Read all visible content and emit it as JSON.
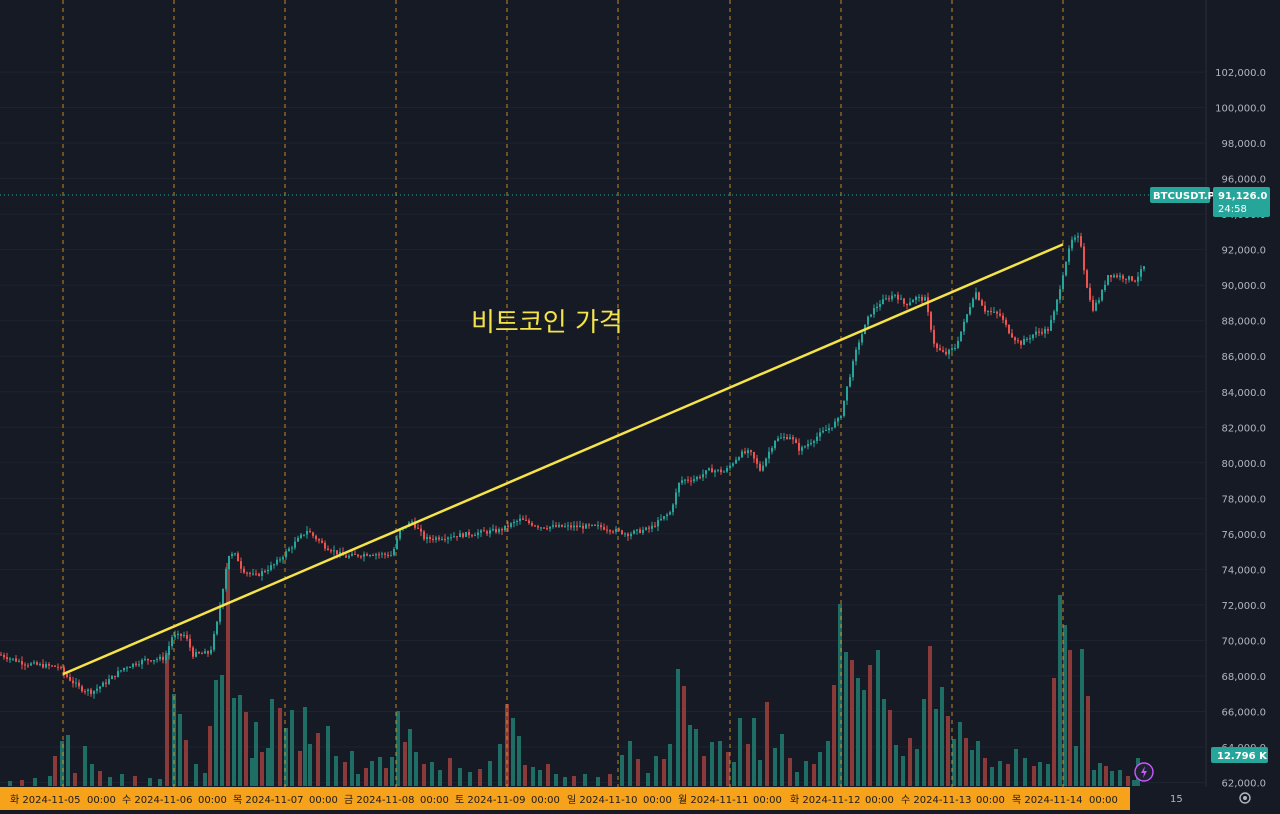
{
  "chart_data": {
    "type": "candlestick",
    "symbol": "BTCUSDT.P",
    "last_price": "91,126.0",
    "countdown": "24:58",
    "volume_label": "12.796 K",
    "annotation": "비트코인 가격",
    "ylim": [
      60000,
      102000
    ],
    "y_ticks": [
      "62,000.0",
      "64,000.0",
      "66,000.0",
      "68,000.0",
      "70,000.0",
      "72,000.0",
      "74,000.0",
      "76,000.0",
      "78,000.0",
      "80,000.0",
      "82,000.0",
      "84,000.0",
      "86,000.0",
      "88,000.0",
      "90,000.0",
      "92,000.0",
      "94,000.0",
      "96,000.0",
      "98,000.0",
      "100,000.0",
      "102,000.0"
    ],
    "x_labels": [
      "화 2024-11-05",
      "00:00",
      "수 2024-11-06",
      "00:00",
      "목 2024-11-07",
      "00:00",
      "금 2024-11-08",
      "00:00",
      "토 2024-11-09",
      "00:00",
      "일 2024-11-10",
      "00:00",
      "월 2024-11-11",
      "00:00",
      "화 2024-11-12",
      "00:00",
      "수 2024-11-13",
      "00:00",
      "목 2024-11-14",
      "00:00"
    ],
    "right_axis_footer": "15",
    "trendline": {
      "start": [
        "2024-11-05",
        68100
      ],
      "end": [
        "2024-11-14",
        92300
      ]
    },
    "price_path": [
      [
        0,
        69200
      ],
      [
        25,
        68700
      ],
      [
        40,
        68600
      ],
      [
        60,
        68500
      ],
      [
        62,
        68200
      ],
      [
        80,
        67300
      ],
      [
        92,
        67100
      ],
      [
        105,
        67600
      ],
      [
        125,
        68500
      ],
      [
        145,
        68900
      ],
      [
        165,
        69000
      ],
      [
        172,
        70200
      ],
      [
        185,
        70300
      ],
      [
        193,
        69200
      ],
      [
        210,
        69300
      ],
      [
        218,
        71200
      ],
      [
        228,
        74800
      ],
      [
        236,
        74800
      ],
      [
        242,
        74000
      ],
      [
        255,
        73600
      ],
      [
        275,
        74300
      ],
      [
        295,
        75500
      ],
      [
        307,
        76200
      ],
      [
        325,
        75300
      ],
      [
        345,
        74700
      ],
      [
        370,
        74900
      ],
      [
        392,
        74800
      ],
      [
        400,
        76200
      ],
      [
        412,
        76700
      ],
      [
        425,
        75700
      ],
      [
        440,
        75800
      ],
      [
        470,
        76000
      ],
      [
        500,
        76200
      ],
      [
        520,
        76800
      ],
      [
        540,
        76400
      ],
      [
        570,
        76400
      ],
      [
        600,
        76400
      ],
      [
        628,
        76000
      ],
      [
        650,
        76300
      ],
      [
        670,
        77200
      ],
      [
        680,
        79000
      ],
      [
        695,
        79100
      ],
      [
        710,
        79600
      ],
      [
        725,
        79500
      ],
      [
        740,
        80500
      ],
      [
        750,
        80600
      ],
      [
        760,
        79600
      ],
      [
        775,
        81300
      ],
      [
        790,
        81500
      ],
      [
        800,
        80700
      ],
      [
        815,
        81400
      ],
      [
        830,
        82000
      ],
      [
        840,
        82500
      ],
      [
        848,
        84500
      ],
      [
        858,
        86700
      ],
      [
        870,
        88400
      ],
      [
        880,
        89000
      ],
      [
        895,
        89500
      ],
      [
        905,
        88900
      ],
      [
        915,
        89300
      ],
      [
        925,
        89200
      ],
      [
        935,
        86500
      ],
      [
        945,
        86100
      ],
      [
        955,
        86500
      ],
      [
        965,
        88000
      ],
      [
        975,
        89700
      ],
      [
        985,
        88600
      ],
      [
        1000,
        88300
      ],
      [
        1010,
        87300
      ],
      [
        1020,
        86700
      ],
      [
        1035,
        87300
      ],
      [
        1048,
        87500
      ],
      [
        1055,
        88600
      ],
      [
        1065,
        91200
      ],
      [
        1072,
        92500
      ],
      [
        1080,
        92700
      ],
      [
        1085,
        90500
      ],
      [
        1092,
        88600
      ],
      [
        1100,
        89300
      ],
      [
        1108,
        90600
      ],
      [
        1120,
        90500
      ],
      [
        1135,
        90300
      ],
      [
        1145,
        91100
      ]
    ],
    "volume_bars": [
      [
        10,
        5
      ],
      [
        22,
        6
      ],
      [
        35,
        8
      ],
      [
        50,
        10
      ],
      [
        55,
        30
      ],
      [
        62,
        45
      ],
      [
        68,
        51
      ],
      [
        75,
        13
      ],
      [
        85,
        40
      ],
      [
        92,
        22
      ],
      [
        100,
        15
      ],
      [
        110,
        9
      ],
      [
        122,
        12
      ],
      [
        135,
        10
      ],
      [
        150,
        8
      ],
      [
        160,
        7
      ],
      [
        167,
        133
      ],
      [
        174,
        92
      ],
      [
        180,
        72
      ],
      [
        186,
        46
      ],
      [
        196,
        22
      ],
      [
        205,
        13
      ],
      [
        210,
        60
      ],
      [
        216,
        106
      ],
      [
        222,
        111
      ],
      [
        228,
        223
      ],
      [
        234,
        88
      ],
      [
        240,
        91
      ],
      [
        246,
        74
      ],
      [
        252,
        28
      ],
      [
        256,
        64
      ],
      [
        262,
        34
      ],
      [
        268,
        38
      ],
      [
        272,
        87
      ],
      [
        280,
        78
      ],
      [
        286,
        58
      ],
      [
        292,
        76
      ],
      [
        300,
        35
      ],
      [
        305,
        79
      ],
      [
        310,
        42
      ],
      [
        318,
        53
      ],
      [
        328,
        60
      ],
      [
        336,
        30
      ],
      [
        345,
        24
      ],
      [
        352,
        35
      ],
      [
        358,
        12
      ],
      [
        366,
        18
      ],
      [
        372,
        25
      ],
      [
        380,
        29
      ],
      [
        386,
        18
      ],
      [
        392,
        29
      ],
      [
        398,
        75
      ],
      [
        405,
        44
      ],
      [
        410,
        57
      ],
      [
        416,
        34
      ],
      [
        424,
        22
      ],
      [
        432,
        24
      ],
      [
        440,
        16
      ],
      [
        450,
        28
      ],
      [
        460,
        18
      ],
      [
        470,
        14
      ],
      [
        480,
        17
      ],
      [
        490,
        25
      ],
      [
        500,
        42
      ],
      [
        507,
        82
      ],
      [
        513,
        68
      ],
      [
        519,
        50
      ],
      [
        525,
        21
      ],
      [
        533,
        19
      ],
      [
        540,
        16
      ],
      [
        548,
        22
      ],
      [
        556,
        12
      ],
      [
        565,
        9
      ],
      [
        574,
        10
      ],
      [
        585,
        12
      ],
      [
        598,
        9
      ],
      [
        610,
        12
      ],
      [
        622,
        31
      ],
      [
        630,
        45
      ],
      [
        638,
        27
      ],
      [
        648,
        13
      ],
      [
        656,
        30
      ],
      [
        664,
        27
      ],
      [
        670,
        42
      ],
      [
        678,
        117
      ],
      [
        684,
        100
      ],
      [
        690,
        61
      ],
      [
        696,
        57
      ],
      [
        704,
        30
      ],
      [
        712,
        44
      ],
      [
        720,
        45
      ],
      [
        728,
        34
      ],
      [
        734,
        24
      ],
      [
        740,
        68
      ],
      [
        748,
        42
      ],
      [
        754,
        68
      ],
      [
        760,
        26
      ],
      [
        767,
        84
      ],
      [
        775,
        38
      ],
      [
        782,
        52
      ],
      [
        790,
        28
      ],
      [
        797,
        14
      ],
      [
        806,
        25
      ],
      [
        814,
        22
      ],
      [
        820,
        34
      ],
      [
        828,
        45
      ],
      [
        834,
        101
      ],
      [
        840,
        182
      ],
      [
        846,
        134
      ],
      [
        852,
        126
      ],
      [
        858,
        108
      ],
      [
        864,
        96
      ],
      [
        870,
        121
      ],
      [
        878,
        136
      ],
      [
        884,
        87
      ],
      [
        890,
        76
      ],
      [
        896,
        41
      ],
      [
        903,
        30
      ],
      [
        910,
        48
      ],
      [
        917,
        37
      ],
      [
        924,
        87
      ],
      [
        930,
        140
      ],
      [
        936,
        77
      ],
      [
        942,
        99
      ],
      [
        948,
        70
      ],
      [
        954,
        47
      ],
      [
        960,
        64
      ],
      [
        966,
        48
      ],
      [
        972,
        36
      ],
      [
        978,
        45
      ],
      [
        985,
        28
      ],
      [
        992,
        19
      ],
      [
        1000,
        25
      ],
      [
        1008,
        22
      ],
      [
        1016,
        37
      ],
      [
        1025,
        28
      ],
      [
        1034,
        20
      ],
      [
        1040,
        24
      ],
      [
        1048,
        22
      ],
      [
        1054,
        108
      ],
      [
        1060,
        191
      ],
      [
        1065,
        161
      ],
      [
        1070,
        136
      ],
      [
        1076,
        40
      ],
      [
        1082,
        137
      ],
      [
        1088,
        90
      ],
      [
        1094,
        16
      ],
      [
        1100,
        23
      ],
      [
        1106,
        20
      ],
      [
        1112,
        15
      ],
      [
        1120,
        16
      ],
      [
        1128,
        10
      ],
      [
        1134,
        6
      ],
      [
        1138,
        28
      ]
    ]
  }
}
